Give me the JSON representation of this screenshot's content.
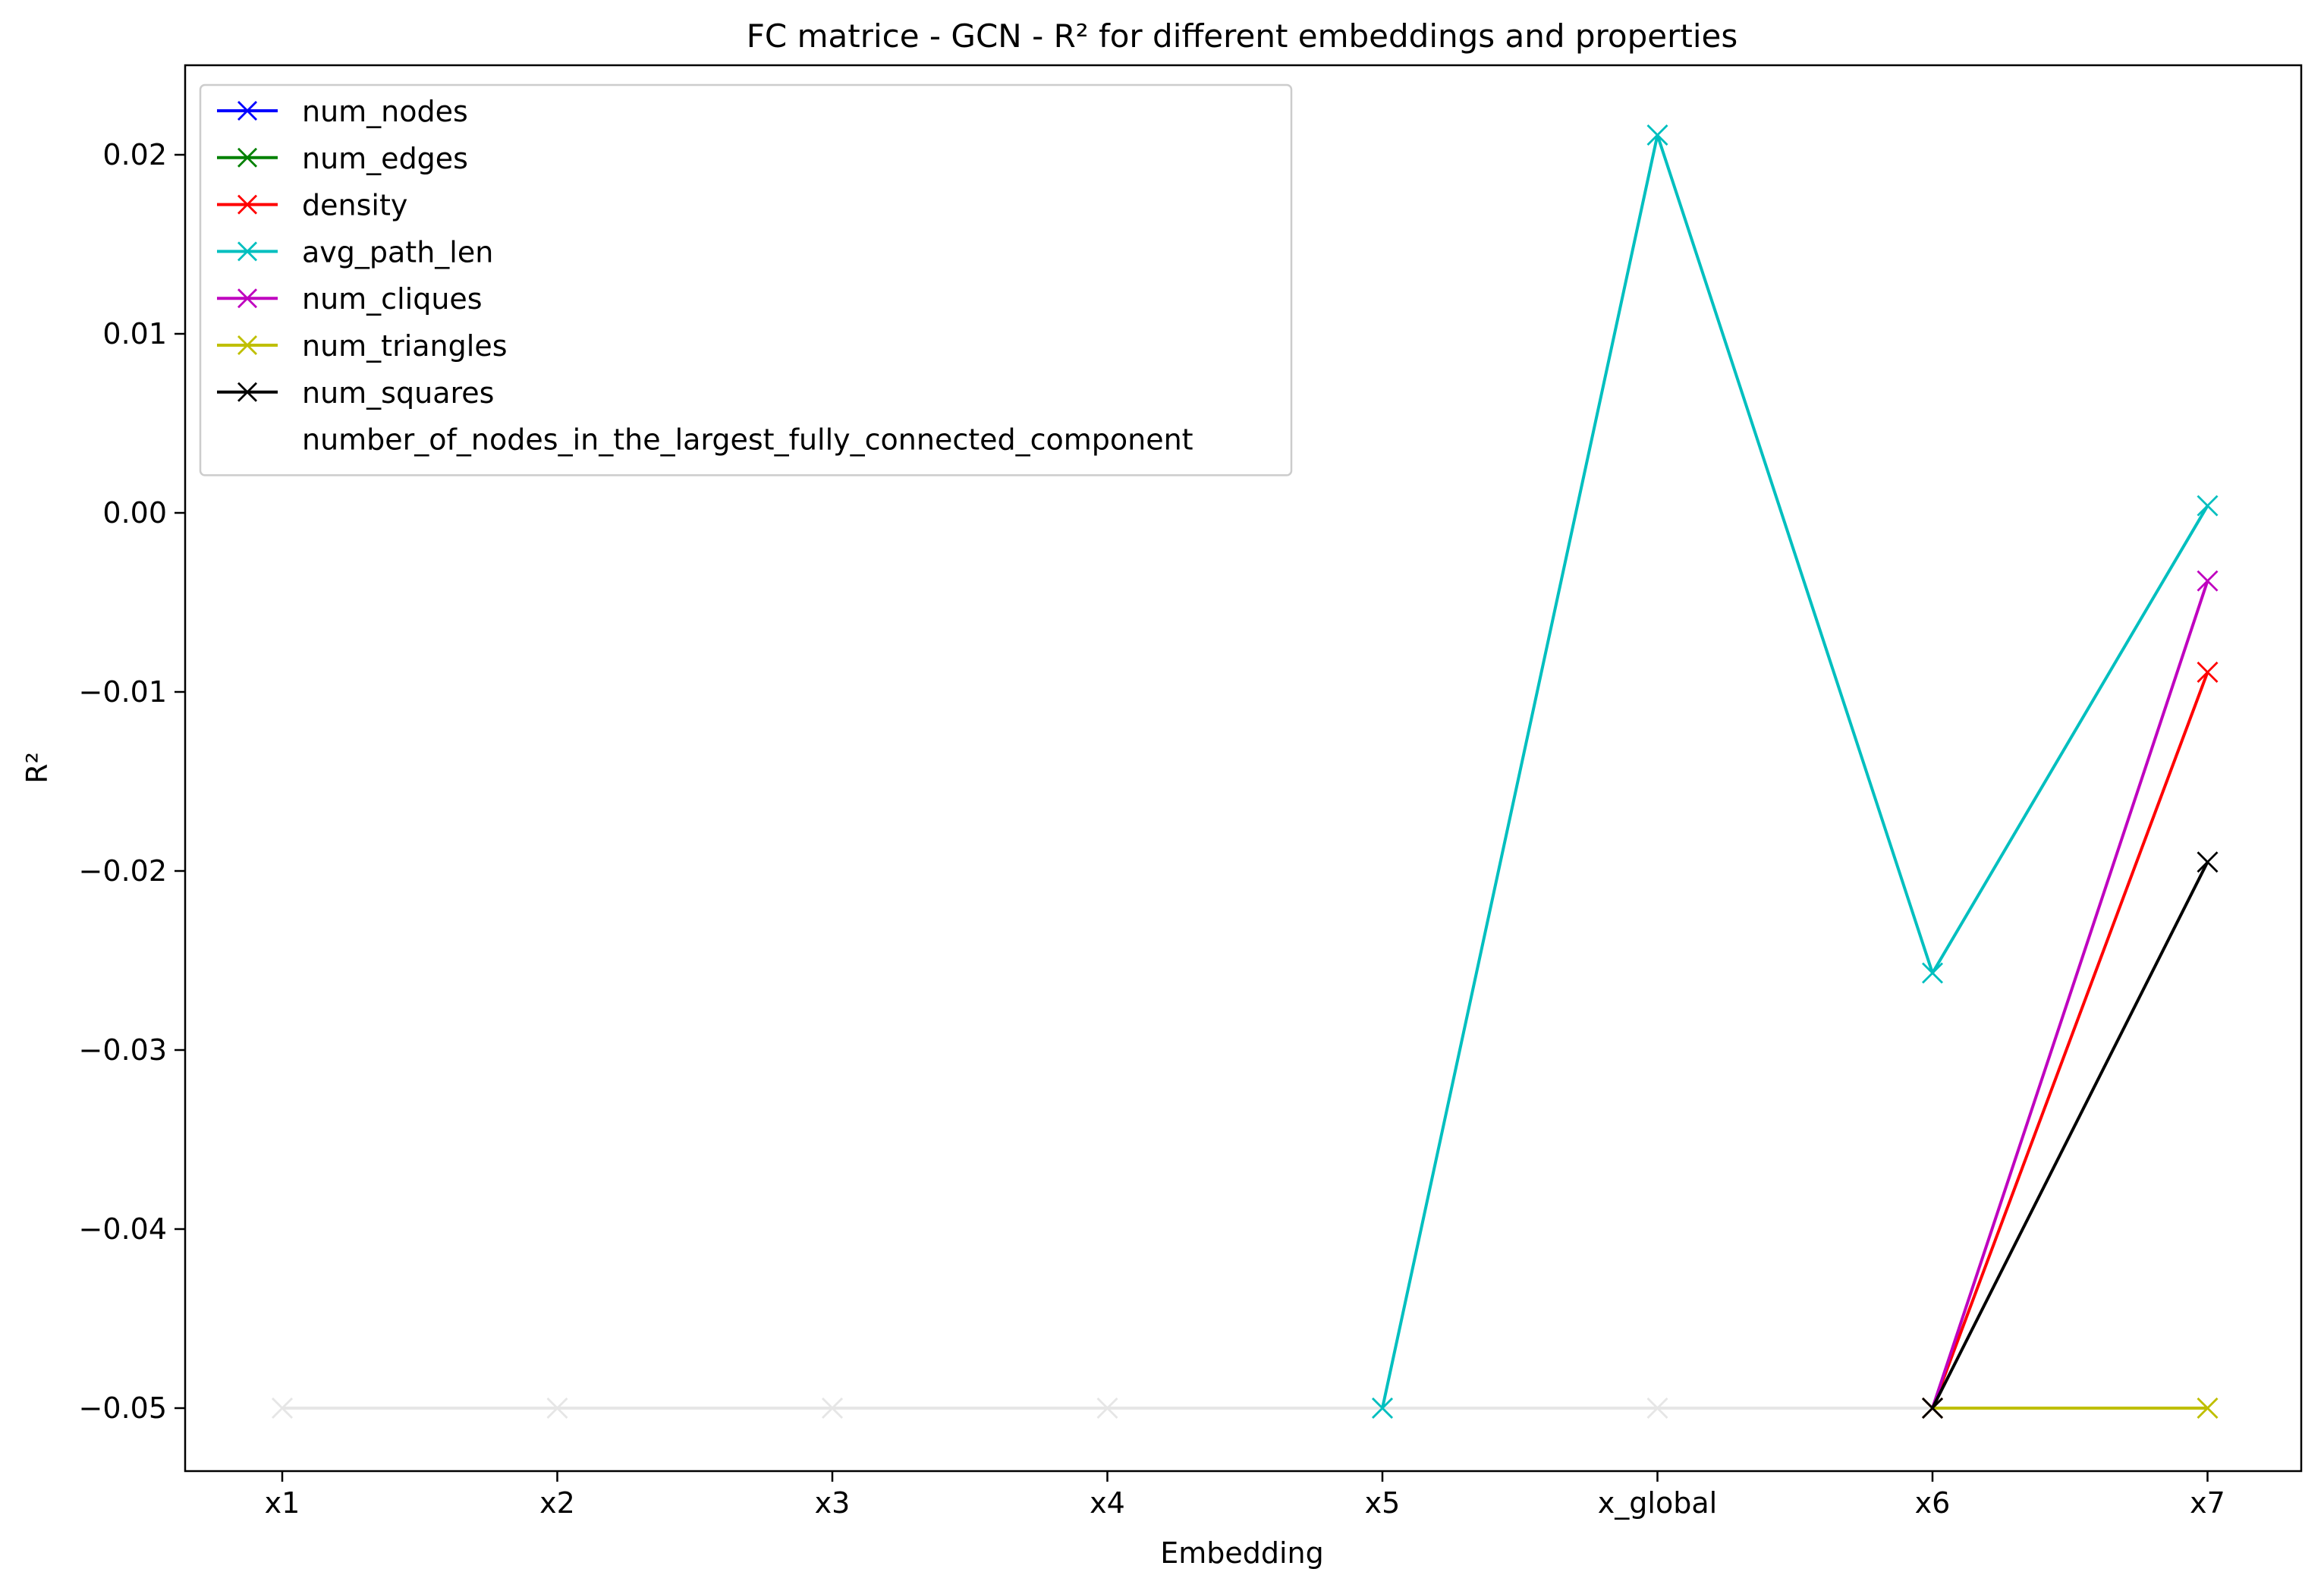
{
  "chart_data": {
    "type": "line",
    "title": "FC matrice - GCN - R² for different embeddings and properties",
    "xlabel": "Embedding",
    "ylabel": "R²",
    "categories": [
      "x1",
      "x2",
      "x3",
      "x4",
      "x5",
      "x_global",
      "x6",
      "x7"
    ],
    "ylim": [
      -0.0535,
      0.0245
    ],
    "yticks": [
      0.02,
      0.01,
      0.0,
      -0.01,
      -0.02,
      -0.03,
      -0.04,
      -0.05
    ],
    "ytick_labels": [
      "0.02",
      "0.01",
      "0.00",
      "−0.01",
      "−0.02",
      "−0.03",
      "−0.04",
      "−0.05"
    ],
    "grid": false,
    "legend_position": "top-left",
    "series": [
      {
        "name": "num_nodes",
        "color": "#0000ff",
        "marker": "x",
        "values": [
          null,
          null,
          null,
          null,
          null,
          null,
          null,
          null
        ]
      },
      {
        "name": "num_edges",
        "color": "#008000",
        "marker": "x",
        "values": [
          null,
          null,
          null,
          null,
          null,
          null,
          null,
          null
        ]
      },
      {
        "name": "density",
        "color": "#ff0000",
        "marker": "x",
        "values": [
          null,
          null,
          null,
          null,
          null,
          null,
          -0.05,
          -0.0089
        ]
      },
      {
        "name": "avg_path_len",
        "color": "#00bfbf",
        "marker": "x",
        "values": [
          null,
          null,
          null,
          null,
          -0.05,
          0.0211,
          -0.0257,
          0.0004
        ]
      },
      {
        "name": "num_cliques",
        "color": "#bf00bf",
        "marker": "x",
        "values": [
          null,
          null,
          null,
          null,
          null,
          null,
          -0.05,
          -0.0038
        ]
      },
      {
        "name": "num_triangles",
        "color": "#bfbf00",
        "marker": "x",
        "values": [
          null,
          null,
          null,
          null,
          null,
          null,
          -0.05,
          -0.05
        ]
      },
      {
        "name": "num_squares",
        "color": "#000000",
        "marker": "x",
        "values": [
          null,
          null,
          null,
          null,
          null,
          null,
          -0.05,
          -0.0195
        ]
      },
      {
        "name": "number_of_nodes_in_the_largest_fully_connected_component",
        "color": "#e6e6e6",
        "marker": "x",
        "values": [
          -0.05,
          -0.05,
          -0.05,
          -0.05,
          -0.05,
          -0.05,
          -0.05,
          -0.05
        ]
      }
    ]
  }
}
